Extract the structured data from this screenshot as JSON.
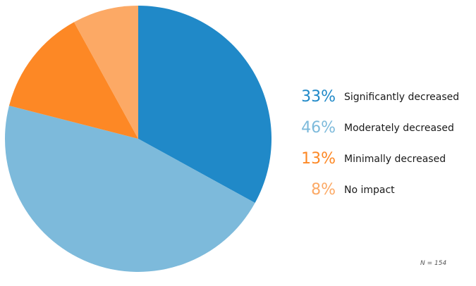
{
  "chart_data": {
    "type": "pie",
    "slices": [
      {
        "label": "Significantly decreased",
        "pct_text": "33%",
        "value": 33,
        "color": "#2089c8"
      },
      {
        "label": "Moderately decreased",
        "pct_text": "46%",
        "value": 46,
        "color": "#7dbadb"
      },
      {
        "label": "Minimally decreased",
        "pct_text": "13%",
        "value": 13,
        "color": "#fd8825"
      },
      {
        "label": "No impact",
        "pct_text": "8%",
        "value": 8,
        "color": "#fca965"
      }
    ],
    "legend_position": "right",
    "note": "N = 154"
  }
}
